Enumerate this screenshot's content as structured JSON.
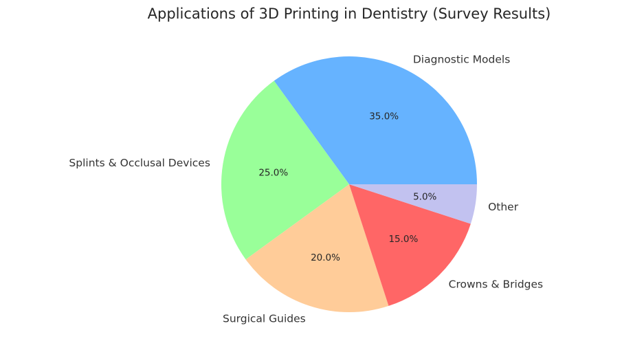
{
  "chart_data": {
    "type": "pie",
    "title": "Applications of 3D Printing in Dentistry (Survey Results)",
    "categories": [
      "Diagnostic Models",
      "Splints & Occlusal Devices",
      "Surgical Guides",
      "Crowns & Bridges",
      "Other"
    ],
    "values": [
      35,
      25,
      20,
      15,
      5
    ],
    "percent_labels": [
      "35.0%",
      "25.0%",
      "20.0%",
      "15.0%",
      "5.0%"
    ],
    "colors": [
      "#66b3ff",
      "#99ff99",
      "#ffcc99",
      "#ff6666",
      "#c2c2f0"
    ],
    "start_angle_deg": 0,
    "direction": "counterclockwise",
    "legend": "none",
    "xlabel": "",
    "ylabel": ""
  }
}
